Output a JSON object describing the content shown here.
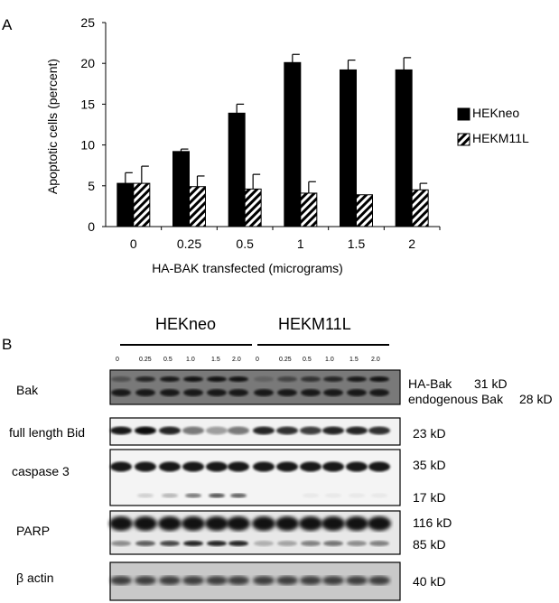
{
  "panels": {
    "a": "A",
    "b": "B"
  },
  "chart_data": {
    "type": "bar",
    "title": "",
    "xlabel": "HA-BAK transfected (micrograms)",
    "ylabel": "Apoptotic cells (percent)",
    "ylim": [
      0,
      25
    ],
    "yticks": [
      0,
      5,
      10,
      15,
      20,
      25
    ],
    "categories": [
      "0",
      "0.25",
      "0.5",
      "1",
      "1.5",
      "2"
    ],
    "legend_position": "right",
    "grid": false,
    "series": [
      {
        "name": "HEKneo",
        "values": [
          5.3,
          9.2,
          13.9,
          20.1,
          19.2,
          19.2
        ],
        "errors": [
          1.3,
          0.3,
          1.1,
          1.0,
          1.2,
          1.5
        ],
        "color": "#000000",
        "pattern": "solid"
      },
      {
        "name": "HEKM11L",
        "values": [
          5.3,
          4.9,
          4.6,
          4.1,
          3.9,
          4.5
        ],
        "errors": [
          2.1,
          1.3,
          1.8,
          1.4,
          0.0,
          0.8
        ],
        "color": "#000000",
        "pattern": "diagonal-hatch"
      }
    ]
  },
  "western": {
    "groups": [
      "HEKneo",
      "HEKM11L"
    ],
    "lane_labels": [
      "0",
      "0.25",
      "0.5",
      "1.0",
      "1.5",
      "2.0",
      "0",
      "0.25",
      "0.5",
      "1.0",
      "1.5",
      "2.0"
    ],
    "rows": [
      {
        "label": "Bak",
        "bands": [
          "HA-Bak",
          "endogenous Bak"
        ],
        "sizes": [
          "31 kD",
          "28 kD"
        ]
      },
      {
        "label": "full length Bid",
        "sizes": [
          "23 kD"
        ]
      },
      {
        "label": "caspase 3",
        "sizes": [
          "35 kD",
          "17 kD"
        ]
      },
      {
        "label": "PARP",
        "sizes": [
          "116 kD",
          "85 kD"
        ]
      },
      {
        "label": "β actin",
        "sizes": [
          "40 kD"
        ]
      }
    ]
  }
}
